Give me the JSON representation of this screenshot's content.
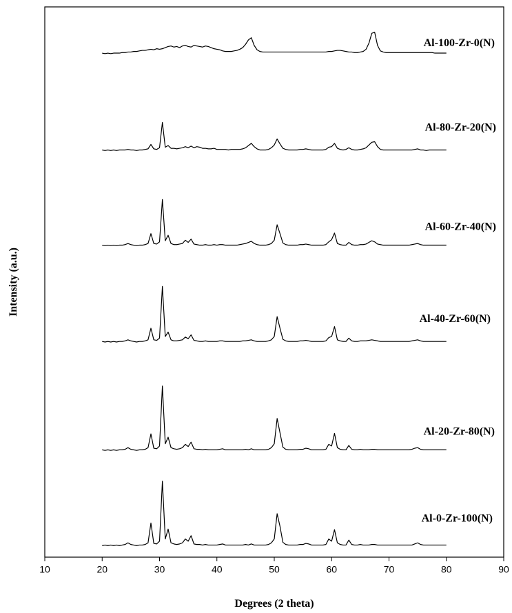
{
  "chart_data": {
    "type": "line",
    "x_label": "Degrees (2 theta)",
    "y_label": "Intensity (a.u.)",
    "xlim": [
      10,
      90
    ],
    "xticks": [
      10,
      20,
      30,
      40,
      50,
      60,
      70,
      80,
      90
    ],
    "ylim": [
      0,
      100
    ],
    "x": [
      20,
      20.5,
      21,
      21.5,
      22,
      22.5,
      23,
      23.5,
      24,
      24.5,
      25,
      25.5,
      26,
      26.5,
      27,
      27.5,
      28,
      28.5,
      29,
      29.5,
      30,
      30.5,
      31,
      31.5,
      32,
      32.5,
      33,
      33.5,
      34,
      34.5,
      35,
      35.5,
      36,
      36.5,
      37,
      37.5,
      38,
      38.5,
      39,
      39.5,
      40,
      40.5,
      41,
      41.5,
      42,
      42.5,
      43,
      43.5,
      44,
      44.5,
      45,
      45.5,
      46,
      46.5,
      47,
      47.5,
      48,
      48.5,
      49,
      49.5,
      50,
      50.5,
      51,
      51.5,
      52,
      52.5,
      53,
      53.5,
      54,
      54.5,
      55,
      55.5,
      56,
      56.5,
      57,
      57.5,
      58,
      58.5,
      59,
      59.5,
      60,
      60.5,
      61,
      61.5,
      62,
      62.5,
      63,
      63.5,
      64,
      64.5,
      65,
      65.5,
      66,
      66.5,
      67,
      67.5,
      68,
      68.5,
      69,
      69.5,
      70,
      70.5,
      71,
      71.5,
      72,
      72.5,
      73,
      73.5,
      74,
      74.5,
      75,
      75.5,
      76,
      76.5,
      77,
      77.5,
      78,
      78.5,
      79,
      79.5,
      80
    ],
    "series": [
      {
        "name": "Al-100-Zr-0(N)",
        "color": "#000000",
        "values": [
          91.6,
          91.5,
          91.6,
          91.5,
          91.6,
          91.6,
          91.6,
          91.7,
          91.7,
          91.8,
          91.8,
          91.9,
          91.9,
          92.0,
          92.1,
          92.1,
          92.2,
          92.3,
          92.2,
          92.4,
          92.3,
          92.4,
          92.6,
          92.8,
          92.9,
          92.7,
          92.8,
          92.6,
          92.9,
          93.0,
          92.8,
          92.7,
          93.0,
          92.9,
          92.8,
          92.7,
          92.9,
          92.8,
          92.6,
          92.4,
          92.3,
          92.2,
          92.0,
          91.9,
          91.9,
          91.9,
          92.0,
          92.1,
          92.3,
          92.6,
          93.2,
          94.0,
          94.4,
          93.0,
          92.2,
          91.9,
          91.8,
          91.8,
          91.8,
          91.8,
          91.8,
          91.8,
          91.8,
          91.8,
          91.8,
          91.8,
          91.8,
          91.8,
          91.8,
          91.8,
          91.8,
          91.8,
          91.8,
          91.8,
          91.8,
          91.8,
          91.8,
          91.8,
          91.8,
          91.9,
          91.9,
          92.0,
          92.1,
          92.1,
          92.0,
          91.9,
          91.8,
          91.8,
          91.7,
          91.7,
          91.8,
          91.9,
          92.3,
          93.4,
          95.2,
          95.4,
          93.0,
          92.0,
          91.8,
          91.7,
          91.7,
          91.7,
          91.7,
          91.7,
          91.7,
          91.7,
          91.7,
          91.7,
          91.7,
          91.7,
          91.7,
          91.7,
          91.7,
          91.7,
          91.7,
          91.7,
          91.6,
          91.6,
          91.6,
          91.6,
          91.6
        ]
      },
      {
        "name": "Al-80-Zr-20(N)",
        "color": "#000000",
        "values": [
          74.0,
          73.9,
          74.0,
          73.9,
          74.0,
          73.9,
          74.0,
          74.0,
          74.0,
          74.1,
          74.0,
          74.0,
          73.9,
          74.0,
          74.0,
          74.1,
          74.2,
          75.0,
          74.2,
          74.1,
          74.4,
          79.0,
          74.5,
          74.8,
          74.3,
          74.3,
          74.2,
          74.3,
          74.4,
          74.6,
          74.4,
          74.7,
          74.4,
          74.6,
          74.5,
          74.3,
          74.3,
          74.2,
          74.2,
          74.3,
          74.1,
          74.1,
          74.1,
          74.1,
          74.0,
          74.1,
          74.1,
          74.1,
          74.1,
          74.2,
          74.4,
          74.8,
          75.2,
          74.6,
          74.2,
          74.0,
          74.0,
          74.0,
          74.1,
          74.4,
          74.9,
          76.0,
          75.1,
          74.3,
          74.1,
          74.0,
          74.0,
          74.0,
          74.0,
          74.1,
          74.1,
          74.2,
          74.1,
          74.0,
          74.0,
          74.0,
          74.0,
          74.0,
          74.1,
          74.5,
          74.6,
          75.2,
          74.3,
          74.1,
          74.0,
          74.1,
          74.4,
          74.1,
          74.0,
          74.0,
          74.1,
          74.2,
          74.4,
          74.9,
          75.4,
          75.5,
          74.6,
          74.1,
          74.0,
          74.0,
          74.0,
          74.0,
          74.0,
          74.0,
          74.0,
          74.0,
          74.0,
          74.0,
          74.0,
          74.1,
          74.2,
          74.0,
          74.0,
          73.9,
          74.0,
          74.0,
          74.0,
          74.0,
          74.0,
          74.0,
          74.0
        ]
      },
      {
        "name": "Al-60-Zr-40(N)",
        "color": "#000000",
        "values": [
          56.7,
          56.6,
          56.7,
          56.6,
          56.7,
          56.6,
          56.7,
          56.7,
          56.8,
          57.0,
          56.8,
          56.7,
          56.6,
          56.7,
          56.7,
          56.8,
          57.0,
          58.8,
          57.0,
          56.9,
          57.3,
          65.0,
          57.5,
          58.5,
          57.0,
          56.8,
          56.8,
          56.9,
          57.0,
          57.6,
          57.2,
          57.8,
          56.9,
          56.8,
          56.7,
          56.7,
          56.8,
          56.7,
          56.7,
          56.8,
          56.7,
          56.8,
          56.8,
          56.7,
          56.7,
          56.7,
          56.7,
          56.7,
          56.8,
          56.9,
          57.0,
          57.2,
          57.4,
          57.0,
          56.8,
          56.7,
          56.7,
          56.7,
          56.8,
          57.0,
          57.6,
          60.4,
          58.8,
          57.1,
          56.8,
          56.7,
          56.7,
          56.7,
          56.7,
          56.8,
          56.8,
          56.9,
          56.8,
          56.7,
          56.7,
          56.7,
          56.7,
          56.7,
          56.8,
          57.3,
          57.7,
          58.9,
          57.0,
          56.8,
          56.7,
          56.7,
          57.2,
          56.8,
          56.7,
          56.7,
          56.8,
          56.8,
          56.9,
          57.2,
          57.5,
          57.3,
          56.9,
          56.8,
          56.7,
          56.7,
          56.7,
          56.7,
          56.7,
          56.7,
          56.7,
          56.7,
          56.7,
          56.7,
          56.8,
          56.9,
          57.0,
          56.8,
          56.7,
          56.7,
          56.7,
          56.7,
          56.7,
          56.7,
          56.7,
          56.7,
          56.7
        ]
      },
      {
        "name": "Al-40-Zr-60(N)",
        "color": "#000000",
        "values": [
          39.2,
          39.1,
          39.2,
          39.1,
          39.2,
          39.1,
          39.2,
          39.2,
          39.3,
          39.5,
          39.3,
          39.2,
          39.1,
          39.2,
          39.2,
          39.3,
          39.5,
          41.6,
          39.5,
          39.4,
          39.8,
          49.2,
          40.1,
          40.9,
          39.5,
          39.3,
          39.3,
          39.4,
          39.5,
          40.0,
          39.7,
          40.4,
          39.4,
          39.3,
          39.2,
          39.2,
          39.3,
          39.2,
          39.2,
          39.2,
          39.2,
          39.3,
          39.3,
          39.2,
          39.2,
          39.2,
          39.2,
          39.2,
          39.2,
          39.3,
          39.3,
          39.4,
          39.5,
          39.3,
          39.2,
          39.2,
          39.2,
          39.2,
          39.3,
          39.5,
          40.1,
          43.7,
          41.6,
          39.6,
          39.3,
          39.2,
          39.2,
          39.2,
          39.2,
          39.3,
          39.3,
          39.4,
          39.3,
          39.2,
          39.2,
          39.2,
          39.2,
          39.2,
          39.3,
          39.9,
          40.1,
          41.9,
          39.5,
          39.3,
          39.2,
          39.2,
          39.8,
          39.3,
          39.2,
          39.2,
          39.3,
          39.3,
          39.3,
          39.4,
          39.5,
          39.4,
          39.3,
          39.2,
          39.2,
          39.2,
          39.2,
          39.2,
          39.2,
          39.2,
          39.2,
          39.2,
          39.2,
          39.2,
          39.3,
          39.4,
          39.5,
          39.3,
          39.2,
          39.2,
          39.2,
          39.2,
          39.2,
          39.2,
          39.2,
          39.2,
          39.2
        ]
      },
      {
        "name": "Al-20-Zr-80(N)",
        "color": "#000000",
        "values": [
          19.5,
          19.4,
          19.5,
          19.4,
          19.5,
          19.4,
          19.5,
          19.5,
          19.6,
          19.9,
          19.6,
          19.5,
          19.4,
          19.5,
          19.5,
          19.6,
          19.9,
          22.4,
          19.8,
          19.7,
          20.2,
          31.1,
          20.6,
          21.8,
          19.9,
          19.7,
          19.6,
          19.7,
          19.9,
          20.5,
          20.1,
          20.9,
          19.7,
          19.6,
          19.6,
          19.5,
          19.6,
          19.5,
          19.5,
          19.5,
          19.5,
          19.6,
          19.7,
          19.5,
          19.5,
          19.5,
          19.5,
          19.5,
          19.5,
          19.5,
          19.6,
          19.5,
          19.7,
          19.5,
          19.5,
          19.5,
          19.5,
          19.5,
          19.6,
          19.9,
          20.6,
          25.2,
          22.6,
          20.0,
          19.6,
          19.5,
          19.5,
          19.5,
          19.5,
          19.6,
          19.6,
          19.8,
          19.7,
          19.5,
          19.5,
          19.5,
          19.5,
          19.5,
          19.6,
          20.5,
          20.2,
          22.5,
          19.9,
          19.6,
          19.5,
          19.5,
          20.3,
          19.6,
          19.5,
          19.5,
          19.6,
          19.5,
          19.5,
          19.5,
          19.6,
          19.6,
          19.5,
          19.5,
          19.5,
          19.5,
          19.5,
          19.5,
          19.5,
          19.5,
          19.5,
          19.5,
          19.5,
          19.5,
          19.6,
          19.8,
          19.9,
          19.6,
          19.5,
          19.5,
          19.5,
          19.5,
          19.5,
          19.5,
          19.5,
          19.5,
          19.5
        ]
      },
      {
        "name": "Al-0-Zr-100(N)",
        "color": "#000000",
        "values": [
          2.1,
          2.2,
          2.1,
          2.2,
          2.1,
          2.2,
          2.1,
          2.2,
          2.3,
          2.6,
          2.3,
          2.2,
          2.1,
          2.2,
          2.2,
          2.3,
          2.6,
          6.2,
          2.5,
          2.4,
          2.9,
          13.8,
          3.3,
          5.1,
          2.6,
          2.4,
          2.3,
          2.4,
          2.6,
          3.3,
          2.9,
          3.9,
          2.4,
          2.3,
          2.3,
          2.2,
          2.3,
          2.2,
          2.2,
          2.2,
          2.2,
          2.3,
          2.4,
          2.2,
          2.2,
          2.2,
          2.2,
          2.2,
          2.2,
          2.2,
          2.3,
          2.2,
          2.4,
          2.2,
          2.2,
          2.2,
          2.2,
          2.2,
          2.3,
          2.6,
          3.3,
          7.9,
          5.6,
          2.7,
          2.3,
          2.2,
          2.2,
          2.2,
          2.2,
          2.3,
          2.3,
          2.5,
          2.4,
          2.2,
          2.2,
          2.2,
          2.2,
          2.2,
          2.3,
          3.3,
          2.9,
          5.0,
          2.6,
          2.3,
          2.2,
          2.2,
          3.1,
          2.3,
          2.2,
          2.2,
          2.3,
          2.2,
          2.2,
          2.2,
          2.3,
          2.3,
          2.2,
          2.2,
          2.2,
          2.2,
          2.2,
          2.2,
          2.2,
          2.2,
          2.2,
          2.2,
          2.2,
          2.2,
          2.2,
          2.4,
          2.6,
          2.3,
          2.2,
          2.2,
          2.2,
          2.2,
          2.2,
          2.2,
          2.2,
          2.2,
          2.2
        ]
      }
    ]
  }
}
